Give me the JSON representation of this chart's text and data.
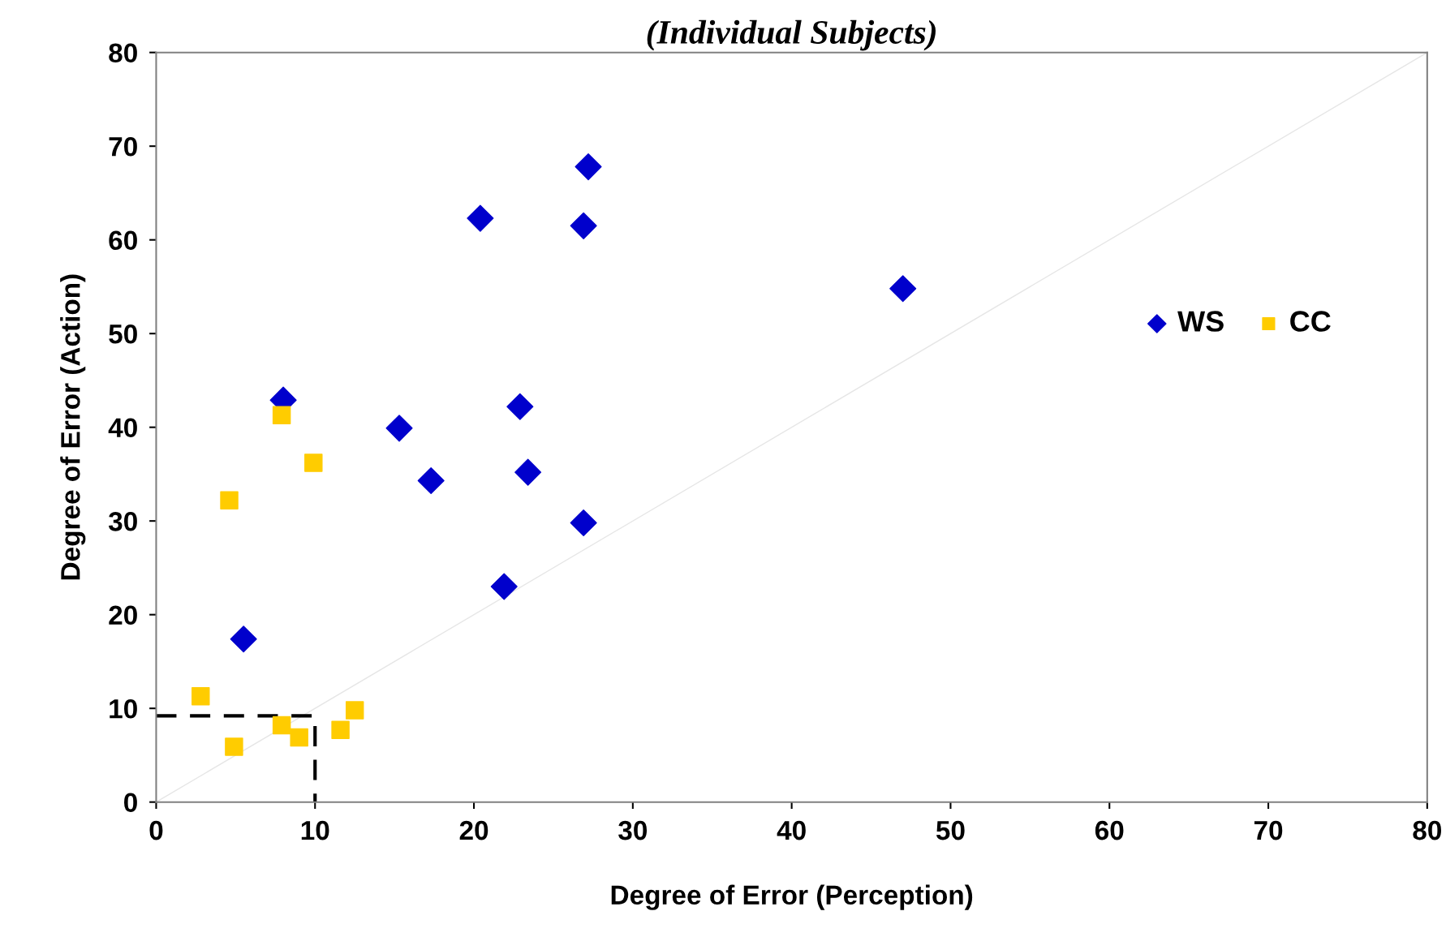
{
  "chart_data": {
    "type": "scatter",
    "title": "(Individual Subjects)",
    "xlabel": "Degree of Error (Perception)",
    "ylabel": "Degree of Error (Action)",
    "xlim": [
      0,
      80
    ],
    "ylim": [
      0,
      80
    ],
    "xticks": [
      0,
      10,
      20,
      30,
      40,
      50,
      60,
      70,
      80
    ],
    "yticks": [
      0,
      10,
      20,
      30,
      40,
      50,
      60,
      70,
      80
    ],
    "grid": false,
    "legend": "right",
    "series": [
      {
        "name": "WS",
        "color": "#0000cc",
        "marker": "diamond",
        "x": [
          5.5,
          8.0,
          15.3,
          17.3,
          20.4,
          21.9,
          22.9,
          23.4,
          26.9,
          26.9,
          27.2,
          47.0
        ],
        "values": [
          17.4,
          42.9,
          39.9,
          34.3,
          62.3,
          23.0,
          42.2,
          35.2,
          29.8,
          61.5,
          67.8,
          54.8
        ]
      },
      {
        "name": "CC",
        "color": "#ffcc00",
        "marker": "square",
        "x": [
          2.8,
          4.6,
          4.9,
          7.9,
          7.9,
          9.0,
          9.9,
          11.6,
          12.5
        ],
        "values": [
          11.3,
          32.2,
          5.9,
          41.3,
          8.2,
          6.9,
          36.2,
          7.7,
          9.8
        ]
      },
      {
        "type": "line",
        "color": "#e6e6e6",
        "line_style": "solid",
        "marker": "none",
        "x": [
          0,
          80
        ],
        "values": [
          0,
          80
        ]
      },
      {
        "type": "line",
        "color": "#000000",
        "line_style": "dashed",
        "marker": "none",
        "x": [
          0,
          10,
          10
        ],
        "values": [
          9.2,
          9.2,
          0
        ]
      }
    ]
  }
}
